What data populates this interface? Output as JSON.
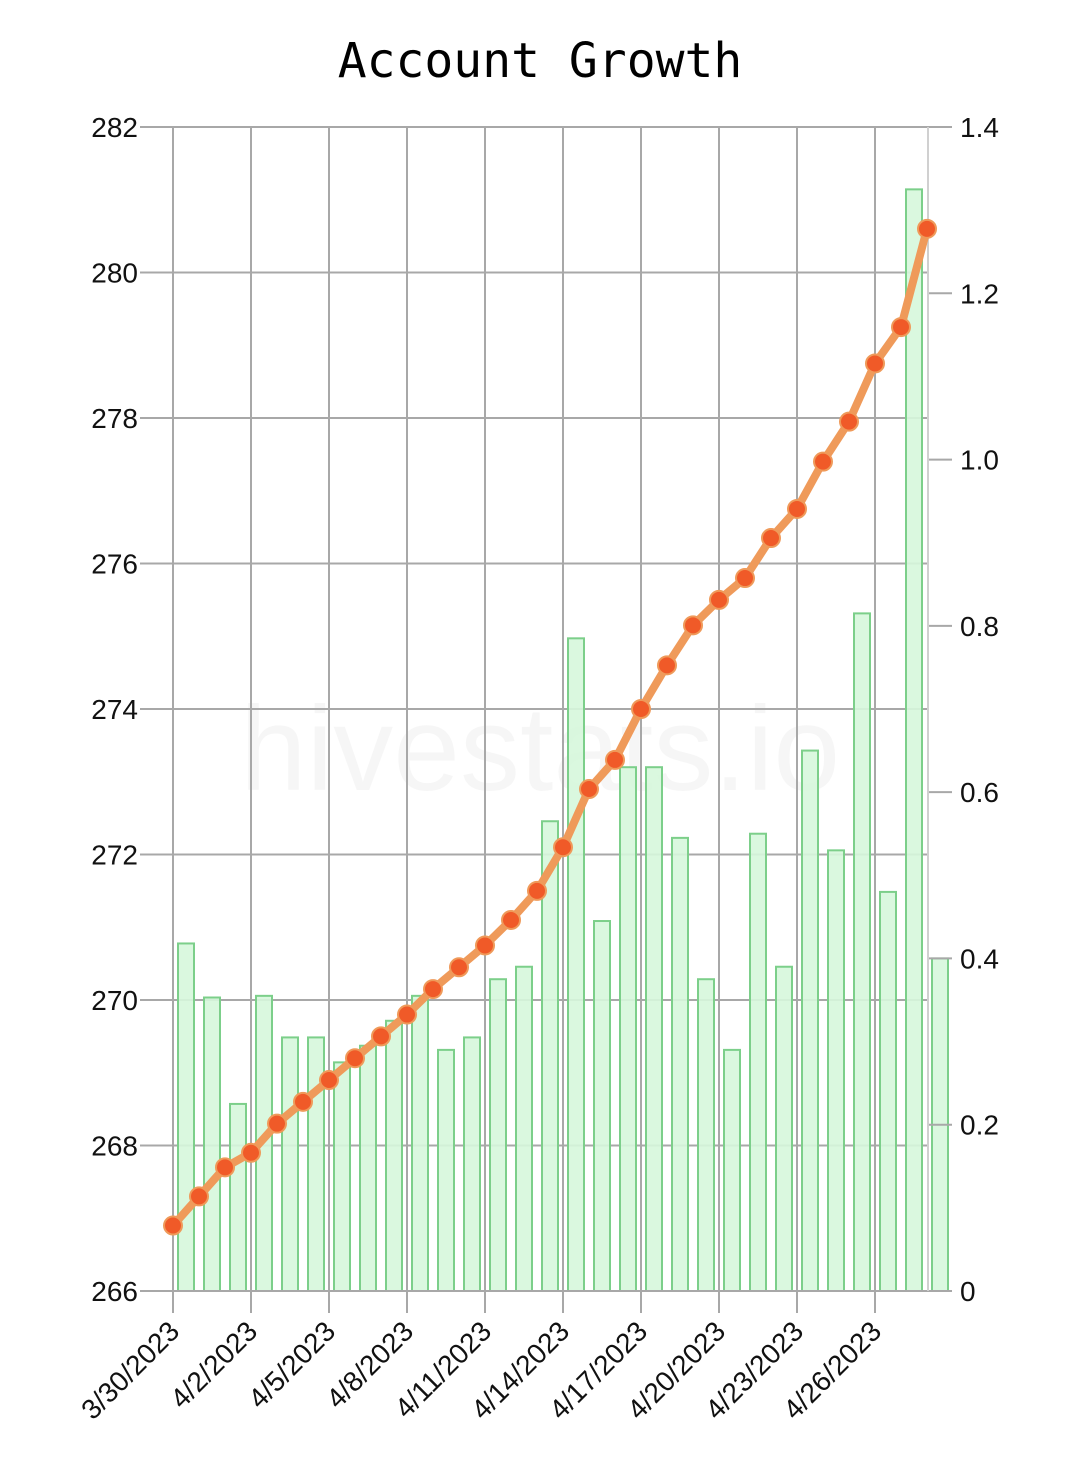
{
  "chart_data": {
    "type": "bar+line",
    "title": "Account Growth",
    "watermark": "hivestats.io",
    "x": [
      "3/30/2023",
      "3/31/2023",
      "4/1/2023",
      "4/2/2023",
      "4/3/2023",
      "4/4/2023",
      "4/5/2023",
      "4/6/2023",
      "4/7/2023",
      "4/8/2023",
      "4/9/2023",
      "4/10/2023",
      "4/11/2023",
      "4/12/2023",
      "4/13/2023",
      "4/14/2023",
      "4/15/2023",
      "4/16/2023",
      "4/17/2023",
      "4/18/2023",
      "4/19/2023",
      "4/20/2023",
      "4/21/2023",
      "4/22/2023",
      "4/23/2023",
      "4/24/2023",
      "4/25/2023",
      "4/26/2023",
      "4/27/2023",
      "4/28/2023"
    ],
    "x_tick_labels": [
      "3/30/2023",
      "4/2/2023",
      "4/5/2023",
      "4/8/2023",
      "4/11/2023",
      "4/14/2023",
      "4/17/2023",
      "4/20/2023",
      "4/23/2023",
      "4/26/2023"
    ],
    "y_left": {
      "min": 266,
      "max": 282,
      "ticks": [
        "266",
        "268",
        "270",
        "272",
        "274",
        "276",
        "278",
        "280",
        "282"
      ]
    },
    "y_right": {
      "min": 0,
      "max": 1.4,
      "ticks": [
        "0",
        "0.2",
        "0.4",
        "0.6",
        "0.8",
        "1.0",
        "1.2",
        "1.4"
      ]
    },
    "series": [
      {
        "type": "line",
        "axis": "left",
        "color": "#ef9a5a",
        "marker_color": "#f05a28",
        "values": [
          266.9,
          267.3,
          267.7,
          267.9,
          268.3,
          268.6,
          268.9,
          269.2,
          269.5,
          269.8,
          270.15,
          270.45,
          270.75,
          271.1,
          271.5,
          272.1,
          272.9,
          273.3,
          274.0,
          274.6,
          275.15,
          275.5,
          275.8,
          276.35,
          276.75,
          277.4,
          277.95,
          278.75,
          279.25,
          280.6
        ]
      },
      {
        "type": "bar",
        "axis": "right",
        "fill": "#d6f7dc",
        "stroke": "#7ccf8a",
        "values": [
          0.418,
          0.353,
          0.225,
          0.355,
          0.305,
          0.305,
          0.275,
          0.295,
          0.325,
          0.355,
          0.29,
          0.305,
          0.375,
          0.39,
          0.565,
          0.785,
          0.445,
          0.63,
          0.63,
          0.545,
          0.375,
          0.29,
          0.55,
          0.39,
          0.65,
          0.53,
          0.815,
          0.48,
          1.325,
          0.4
        ]
      }
    ],
    "grid": true,
    "legend": "none"
  }
}
